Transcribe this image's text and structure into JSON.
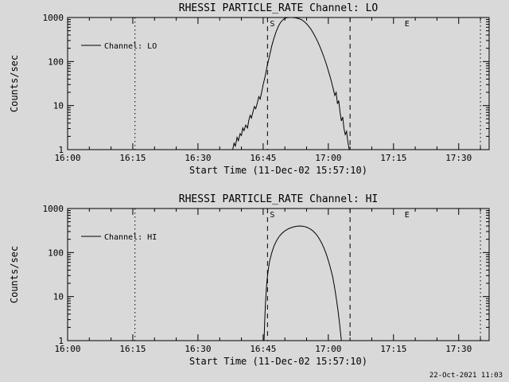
{
  "page": {
    "timestamp": "22-Oct-2021 11:03",
    "background": "#d9d9d9",
    "line_color": "#000000"
  },
  "chart_data": [
    {
      "type": "line",
      "title": "RHESSI PARTICLE_RATE Channel: LO",
      "xlabel": "Start Time (11-Dec-02 15:57:10)",
      "ylabel": "Counts/sec",
      "legend": "Channel: LO",
      "x_unit": "minutes after 16:00",
      "xlim": [
        0,
        97
      ],
      "ylim": [
        1,
        1000
      ],
      "y_scale": "log",
      "grid": "off",
      "x_minor_step": 5,
      "x_ticks": [
        {
          "t": 0,
          "label": "16:00"
        },
        {
          "t": 15,
          "label": "16:15"
        },
        {
          "t": 30,
          "label": "16:30"
        },
        {
          "t": 45,
          "label": "16:45"
        },
        {
          "t": 60,
          "label": "17:00"
        },
        {
          "t": 75,
          "label": "17:15"
        },
        {
          "t": 90,
          "label": "17:30"
        }
      ],
      "y_ticks": [
        {
          "v": 1,
          "label": "1"
        },
        {
          "v": 10,
          "label": "10"
        },
        {
          "v": 100,
          "label": "100"
        },
        {
          "v": 1000,
          "label": "1000"
        }
      ],
      "events": [
        {
          "t": 15.5,
          "style": "dotted",
          "label": ""
        },
        {
          "t": 46,
          "style": "dashed",
          "label": "S"
        },
        {
          "t": 65,
          "style": "dashed",
          "label": ""
        },
        {
          "t": 77,
          "style": "none",
          "label": "E"
        },
        {
          "t": 95,
          "style": "dotted",
          "label": ""
        }
      ],
      "series": [
        {
          "name": "Channel: LO",
          "points": [
            [
              38,
              1
            ],
            [
              38.3,
              1.4
            ],
            [
              38.6,
              1.2
            ],
            [
              39,
              1.9
            ],
            [
              39.3,
              1.6
            ],
            [
              39.7,
              2.3
            ],
            [
              40,
              2.1
            ],
            [
              40.3,
              3.1
            ],
            [
              40.6,
              2.7
            ],
            [
              41,
              3.6
            ],
            [
              41.4,
              3.1
            ],
            [
              41.7,
              4.6
            ],
            [
              42,
              6
            ],
            [
              42.3,
              5.2
            ],
            [
              42.7,
              7.5
            ],
            [
              43,
              9.5
            ],
            [
              43.3,
              8.5
            ],
            [
              43.7,
              12
            ],
            [
              44,
              16
            ],
            [
              44.3,
              14
            ],
            [
              44.7,
              21
            ],
            [
              45,
              30
            ],
            [
              45.5,
              48
            ],
            [
              46,
              85
            ],
            [
              46.5,
              140
            ],
            [
              47,
              230
            ],
            [
              47.5,
              340
            ],
            [
              48,
              480
            ],
            [
              48.5,
              630
            ],
            [
              49,
              770
            ],
            [
              49.5,
              880
            ],
            [
              50,
              950
            ],
            [
              50.5,
              990
            ],
            [
              51,
              1000
            ],
            [
              51.5,
              1000
            ],
            [
              52,
              995
            ],
            [
              52.5,
              980
            ],
            [
              53,
              955
            ],
            [
              53.5,
              920
            ],
            [
              54,
              870
            ],
            [
              54.5,
              800
            ],
            [
              55,
              720
            ],
            [
              55.5,
              630
            ],
            [
              56,
              540
            ],
            [
              56.5,
              450
            ],
            [
              57,
              365
            ],
            [
              57.5,
              290
            ],
            [
              58,
              225
            ],
            [
              58.5,
              170
            ],
            [
              59,
              125
            ],
            [
              59.5,
              90
            ],
            [
              60,
              62
            ],
            [
              60.5,
              42
            ],
            [
              61,
              27
            ],
            [
              61.5,
              17
            ],
            [
              61.8,
              20
            ],
            [
              62.1,
              11
            ],
            [
              62.4,
              13
            ],
            [
              62.7,
              7
            ],
            [
              63,
              4.5
            ],
            [
              63.3,
              5.5
            ],
            [
              63.6,
              3
            ],
            [
              63.9,
              2.2
            ],
            [
              64.2,
              2.6
            ],
            [
              64.5,
              1.5
            ],
            [
              64.8,
              1
            ]
          ]
        }
      ]
    },
    {
      "type": "line",
      "title": "RHESSI PARTICLE_RATE Channel: HI",
      "xlabel": "Start Time (11-Dec-02 15:57:10)",
      "ylabel": "Counts/sec",
      "legend": "Channel: HI",
      "x_unit": "minutes after 16:00",
      "xlim": [
        0,
        97
      ],
      "ylim": [
        1,
        1000
      ],
      "y_scale": "log",
      "grid": "off",
      "x_minor_step": 5,
      "x_ticks": [
        {
          "t": 0,
          "label": "16:00"
        },
        {
          "t": 15,
          "label": "16:15"
        },
        {
          "t": 30,
          "label": "16:30"
        },
        {
          "t": 45,
          "label": "16:45"
        },
        {
          "t": 60,
          "label": "17:00"
        },
        {
          "t": 75,
          "label": "17:15"
        },
        {
          "t": 90,
          "label": "17:30"
        }
      ],
      "y_ticks": [
        {
          "v": 1,
          "label": "1"
        },
        {
          "v": 10,
          "label": "10"
        },
        {
          "v": 100,
          "label": "100"
        },
        {
          "v": 1000,
          "label": "1000"
        }
      ],
      "events": [
        {
          "t": 15.5,
          "style": "dotted",
          "label": ""
        },
        {
          "t": 46,
          "style": "dashed",
          "label": "S"
        },
        {
          "t": 65,
          "style": "dashed",
          "label": ""
        },
        {
          "t": 77,
          "style": "none",
          "label": "E"
        },
        {
          "t": 95,
          "style": "dotted",
          "label": ""
        }
      ],
      "series": [
        {
          "name": "Channel: HI",
          "points": [
            [
              45.2,
              1
            ],
            [
              45.35,
              2.6
            ],
            [
              45.5,
              6
            ],
            [
              45.7,
              13
            ],
            [
              45.9,
              24
            ],
            [
              46.2,
              42
            ],
            [
              46.5,
              65
            ],
            [
              47,
              100
            ],
            [
              47.5,
              140
            ],
            [
              48,
              180
            ],
            [
              48.5,
              218
            ],
            [
              49,
              252
            ],
            [
              49.5,
              283
            ],
            [
              50,
              310
            ],
            [
              50.5,
              333
            ],
            [
              51,
              353
            ],
            [
              51.5,
              369
            ],
            [
              52,
              382
            ],
            [
              52.5,
              392
            ],
            [
              53,
              398
            ],
            [
              53.5,
              400
            ],
            [
              54,
              397
            ],
            [
              54.5,
              389
            ],
            [
              55,
              376
            ],
            [
              55.5,
              358
            ],
            [
              56,
              335
            ],
            [
              56.5,
              307
            ],
            [
              57,
              274
            ],
            [
              57.5,
              238
            ],
            [
              58,
              200
            ],
            [
              58.5,
              162
            ],
            [
              59,
              126
            ],
            [
              59.5,
              94
            ],
            [
              60,
              66
            ],
            [
              60.5,
              44
            ],
            [
              61,
              28
            ],
            [
              61.4,
              17
            ],
            [
              61.8,
              9.5
            ],
            [
              62.2,
              5
            ],
            [
              62.6,
              2.4
            ],
            [
              63,
              1
            ]
          ]
        }
      ]
    }
  ]
}
